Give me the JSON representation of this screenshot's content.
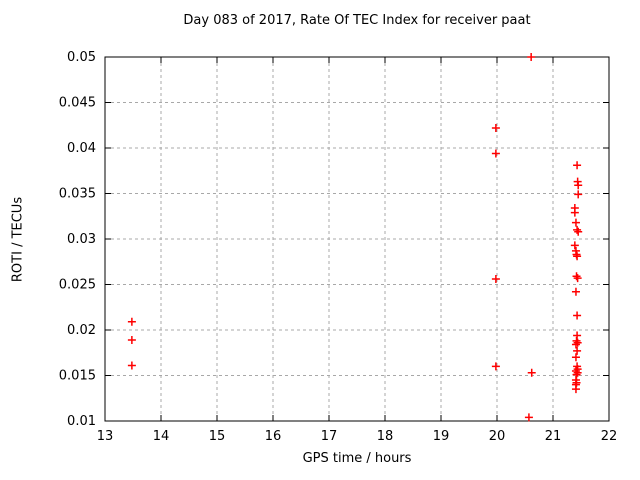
{
  "window": {
    "background": "#ffffff"
  },
  "colors": {
    "marker": "#ff0000",
    "grid": "#a8a8a8",
    "axis": "#000000",
    "text": "#000000"
  },
  "chart_data": {
    "type": "scatter",
    "title": "Day 083 of 2017, Rate Of TEC Index for receiver paat",
    "xlabel": "GPS time / hours",
    "ylabel": "ROTI / TECUs",
    "xlim": [
      13,
      22
    ],
    "ylim": [
      0.01,
      0.05
    ],
    "xticks": [
      "13",
      "14",
      "15",
      "16",
      "17",
      "18",
      "19",
      "20",
      "21",
      "22"
    ],
    "yticks": [
      "0.01",
      "0.015",
      "0.02",
      "0.025",
      "0.03",
      "0.035",
      "0.04",
      "0.045",
      "0.05"
    ],
    "grid": true,
    "legend_position": "none",
    "marker": {
      "shape": "plus",
      "color": "#ff0000",
      "size": 8
    },
    "series": [
      {
        "name": "ROTI",
        "points": [
          [
            13.48,
            0.0209
          ],
          [
            13.48,
            0.0189
          ],
          [
            13.48,
            0.0161
          ],
          [
            19.98,
            0.0422
          ],
          [
            19.98,
            0.0394
          ],
          [
            19.98,
            0.0256
          ],
          [
            19.98,
            0.016
          ],
          [
            20.61,
            0.05
          ],
          [
            20.62,
            0.0153
          ],
          [
            20.57,
            0.0104
          ],
          [
            21.43,
            0.0381
          ],
          [
            21.44,
            0.0363
          ],
          [
            21.45,
            0.0359
          ],
          [
            21.45,
            0.0349
          ],
          [
            21.39,
            0.0334
          ],
          [
            21.39,
            0.0329
          ],
          [
            21.41,
            0.0318
          ],
          [
            21.43,
            0.031
          ],
          [
            21.45,
            0.0308
          ],
          [
            21.39,
            0.0293
          ],
          [
            21.41,
            0.0287
          ],
          [
            21.42,
            0.0283
          ],
          [
            21.43,
            0.0281
          ],
          [
            21.42,
            0.0259
          ],
          [
            21.44,
            0.0257
          ],
          [
            21.41,
            0.0242
          ],
          [
            21.43,
            0.0216
          ],
          [
            21.43,
            0.0194
          ],
          [
            21.42,
            0.0188
          ],
          [
            21.44,
            0.0186
          ],
          [
            21.41,
            0.0184
          ],
          [
            21.43,
            0.0177
          ],
          [
            21.41,
            0.017
          ],
          [
            21.43,
            0.016
          ],
          [
            21.44,
            0.0157
          ],
          [
            21.41,
            0.0155
          ],
          [
            21.44,
            0.0153
          ],
          [
            21.42,
            0.0151
          ],
          [
            21.41,
            0.0145
          ],
          [
            21.42,
            0.0142
          ],
          [
            21.41,
            0.014
          ],
          [
            21.41,
            0.0135
          ]
        ]
      }
    ]
  }
}
